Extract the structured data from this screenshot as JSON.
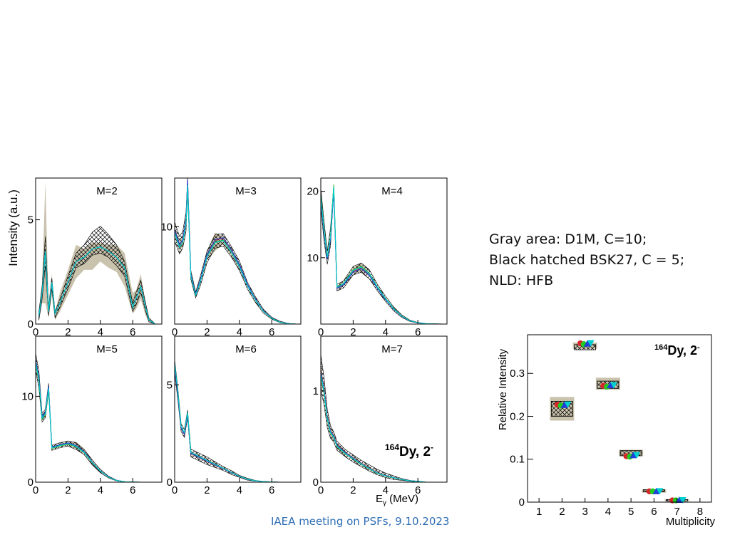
{
  "notes": {
    "line1": "Gray area: D1M, C=10;",
    "line2": "Black hatched BSK27, C = 5;",
    "line3": "NLD: HFB"
  },
  "footer": {
    "text": "IAEA meeting on PSFs, 9.10.2023"
  },
  "colors": {
    "band_gray": "#c9c2ad",
    "hatch": "#000000",
    "series": [
      "#d62728",
      "#22cc22",
      "#1f3fd6",
      "#00d0d0"
    ],
    "footer": "#2f6eb5"
  },
  "chart_data": [
    {
      "type": "line",
      "ylabel": "Intensity (a.u.)",
      "xlabel": "Eγ (MeV)",
      "annotation": "164Dy, 2-",
      "xlim": [
        0,
        7.8
      ],
      "xticks": [
        0,
        2,
        4,
        6
      ],
      "panels": [
        {
          "label": "M=2",
          "ylim": [
            0,
            7
          ],
          "yticks": [
            0,
            5
          ],
          "x": [
            0.2,
            0.4,
            0.6,
            0.8,
            1.0,
            1.2,
            1.5,
            2.0,
            2.5,
            3.0,
            3.5,
            4.0,
            4.5,
            5.0,
            5.5,
            6.0,
            6.2,
            6.5,
            6.8,
            7.0,
            7.4
          ],
          "values": [
            0.4,
            1.5,
            3.5,
            0.6,
            2.0,
            0.5,
            1.0,
            2.0,
            3.0,
            3.2,
            3.6,
            3.7,
            3.5,
            3.2,
            2.7,
            0.8,
            1.2,
            1.8,
            0.8,
            0.2,
            0
          ],
          "hatch_upper": [
            0.6,
            1.8,
            4.2,
            0.8,
            2.2,
            0.6,
            1.2,
            2.3,
            3.4,
            3.8,
            4.4,
            4.7,
            4.3,
            3.8,
            3.0,
            1.0,
            1.5,
            2.1,
            1.0,
            0.3,
            0
          ],
          "hatch_lower": [
            0.2,
            1.2,
            2.8,
            0.4,
            1.7,
            0.3,
            0.8,
            1.7,
            2.7,
            2.9,
            3.3,
            3.4,
            3.2,
            2.8,
            2.3,
            0.6,
            0.9,
            1.5,
            0.6,
            0.1,
            0
          ],
          "gray_upper": [
            0.6,
            2.0,
            6.8,
            1.0,
            2.4,
            0.6,
            1.5,
            2.6,
            3.8,
            3.6,
            3.9,
            3.9,
            3.8,
            3.8,
            3.4,
            1.5,
            1.6,
            2.4,
            1.0,
            0.3,
            0
          ],
          "gray_lower": [
            0.1,
            1.0,
            1.0,
            0.3,
            1.4,
            0.2,
            0.6,
            1.4,
            2.2,
            2.6,
            2.6,
            3.0,
            2.7,
            2.5,
            1.8,
            0.5,
            0.7,
            1.2,
            0.4,
            0.1,
            0
          ]
        },
        {
          "label": "M=3",
          "ylim": [
            0,
            15
          ],
          "yticks": [
            10
          ],
          "x": [
            0.0,
            0.3,
            0.5,
            0.7,
            0.8,
            1.0,
            1.3,
            1.6,
            2.0,
            2.5,
            3.0,
            3.5,
            4.0,
            4.5,
            5.0,
            5.5,
            6.0,
            6.5,
            7.0,
            7.5
          ],
          "values": [
            9.5,
            8.0,
            8.5,
            10.5,
            14.5,
            5.0,
            3.0,
            4.5,
            7.0,
            8.5,
            8.7,
            7.5,
            6.0,
            4.0,
            2.5,
            1.3,
            0.6,
            0.2,
            0.05,
            0
          ],
          "hatch_upper": [
            10.5,
            9.0,
            9.5,
            11.5,
            15.0,
            5.5,
            3.3,
            5.0,
            7.5,
            9.2,
            9.3,
            8.0,
            6.5,
            4.3,
            2.8,
            1.5,
            0.7,
            0.3,
            0.08,
            0
          ],
          "hatch_lower": [
            8.5,
            7.2,
            7.8,
            9.5,
            13.5,
            4.6,
            2.7,
            4.0,
            6.3,
            7.8,
            8.0,
            6.9,
            5.5,
            3.6,
            2.2,
            1.1,
            0.5,
            0.15,
            0.03,
            0
          ],
          "gray_upper": [
            10.0,
            8.6,
            9.2,
            11.0,
            14.8,
            5.3,
            3.2,
            4.8,
            7.5,
            9.4,
            9.0,
            7.8,
            6.3,
            4.2,
            2.7,
            1.4,
            0.7,
            0.25,
            0.06,
            0
          ],
          "gray_lower": [
            9.0,
            7.5,
            8.0,
            10.0,
            14.0,
            4.8,
            2.8,
            4.2,
            6.6,
            7.5,
            8.2,
            7.0,
            5.6,
            3.8,
            2.3,
            1.2,
            0.5,
            0.15,
            0.04,
            0
          ]
        },
        {
          "label": "M=4",
          "ylim": [
            0,
            22
          ],
          "yticks": [
            10,
            20
          ],
          "x": [
            0.0,
            0.2,
            0.4,
            0.6,
            0.8,
            1.0,
            1.4,
            2.0,
            2.5,
            3.0,
            3.5,
            4.0,
            4.5,
            5.0,
            5.5,
            6.0,
            6.5,
            7.0,
            7.5
          ],
          "values": [
            19.0,
            14.0,
            10.0,
            13.0,
            20.5,
            5.5,
            6.0,
            8.0,
            8.5,
            7.5,
            5.5,
            3.8,
            2.3,
            1.2,
            0.5,
            0.2,
            0.06,
            0.02,
            0
          ],
          "hatch_upper": [
            20.5,
            15.5,
            11.0,
            14.5,
            21.0,
            6.0,
            6.5,
            8.7,
            9.2,
            8.2,
            6.0,
            4.2,
            2.6,
            1.4,
            0.6,
            0.25,
            0.08,
            0.03,
            0
          ],
          "hatch_lower": [
            17.5,
            12.5,
            9.0,
            11.8,
            20.0,
            5.0,
            5.4,
            7.4,
            7.8,
            6.8,
            5.0,
            3.4,
            2.0,
            1.0,
            0.4,
            0.15,
            0.04,
            0.01,
            0
          ],
          "gray_upper": [
            20.0,
            15.0,
            10.5,
            14.0,
            20.8,
            5.8,
            6.2,
            8.5,
            9.2,
            7.8,
            5.7,
            4.0,
            2.4,
            1.3,
            0.55,
            0.22,
            0.07,
            0.02,
            0
          ],
          "gray_lower": [
            18.0,
            13.0,
            9.5,
            12.2,
            20.2,
            5.2,
            5.7,
            7.6,
            7.9,
            7.2,
            5.2,
            3.6,
            2.1,
            1.1,
            0.45,
            0.17,
            0.05,
            0.01,
            0
          ]
        },
        {
          "label": "M=5",
          "ylim": [
            0,
            17
          ],
          "yticks": [
            0,
            10
          ],
          "x": [
            0.0,
            0.2,
            0.4,
            0.6,
            0.8,
            1.0,
            1.5,
            2.0,
            2.5,
            3.0,
            3.5,
            4.0,
            4.5,
            5.0,
            5.5,
            6.0,
            6.5,
            7.0,
            7.5
          ],
          "values": [
            14.0,
            12.0,
            7.5,
            8.0,
            11.0,
            4.0,
            4.3,
            4.5,
            4.2,
            3.5,
            2.3,
            1.3,
            0.6,
            0.2,
            0.05,
            0.02,
            0,
            0,
            0
          ],
          "hatch_upper": [
            15.0,
            13.0,
            8.0,
            8.5,
            11.5,
            4.3,
            4.6,
            4.8,
            4.6,
            3.8,
            2.6,
            1.5,
            0.7,
            0.25,
            0.07,
            0.03,
            0,
            0,
            0
          ],
          "hatch_lower": [
            13.0,
            11.0,
            7.0,
            7.5,
            10.5,
            3.7,
            4.0,
            4.2,
            3.8,
            3.2,
            2.0,
            1.1,
            0.5,
            0.15,
            0.03,
            0.01,
            0,
            0,
            0
          ],
          "gray_upper": [
            14.8,
            12.5,
            7.8,
            8.3,
            11.3,
            4.2,
            4.5,
            4.7,
            4.7,
            3.9,
            2.5,
            1.4,
            0.65,
            0.22,
            0.06,
            0.02,
            0,
            0,
            0
          ],
          "gray_lower": [
            13.2,
            11.5,
            7.2,
            7.7,
            10.7,
            3.8,
            4.1,
            4.3,
            3.9,
            3.3,
            2.1,
            1.2,
            0.55,
            0.18,
            0.04,
            0.01,
            0,
            0,
            0
          ]
        },
        {
          "label": "M=6",
          "ylim": [
            0,
            7.5
          ],
          "yticks": [
            0,
            5
          ],
          "x": [
            0.0,
            0.2,
            0.4,
            0.6,
            0.8,
            1.0,
            1.5,
            2.0,
            2.5,
            3.0,
            3.5,
            4.0,
            4.5,
            5.0,
            5.5,
            6.0,
            6.5,
            7.0,
            7.5
          ],
          "values": [
            6.0,
            4.5,
            2.8,
            2.5,
            3.5,
            1.5,
            1.3,
            1.1,
            0.9,
            0.7,
            0.5,
            0.3,
            0.15,
            0.07,
            0.03,
            0.01,
            0,
            0,
            0
          ],
          "hatch_upper": [
            6.3,
            4.8,
            3.0,
            2.7,
            3.7,
            1.7,
            1.5,
            1.3,
            1.05,
            0.8,
            0.6,
            0.35,
            0.2,
            0.09,
            0.04,
            0.02,
            0,
            0,
            0
          ],
          "hatch_lower": [
            5.6,
            4.2,
            2.6,
            2.3,
            3.3,
            1.3,
            1.1,
            0.9,
            0.75,
            0.6,
            0.4,
            0.25,
            0.1,
            0.05,
            0.02,
            0.01,
            0,
            0,
            0
          ],
          "gray_upper": [
            6.2,
            4.7,
            2.9,
            2.6,
            3.6,
            1.6,
            1.4,
            1.2,
            1.0,
            0.75,
            0.55,
            0.32,
            0.17,
            0.08,
            0.03,
            0.01,
            0,
            0,
            0
          ],
          "gray_lower": [
            5.8,
            4.3,
            2.7,
            2.4,
            3.4,
            1.4,
            1.2,
            1.0,
            0.8,
            0.65,
            0.45,
            0.28,
            0.13,
            0.06,
            0.02,
            0.01,
            0,
            0,
            0
          ]
        },
        {
          "label": "M=7",
          "ylim": [
            0,
            1.6
          ],
          "yticks": [
            0,
            1
          ],
          "x": [
            0.0,
            0.2,
            0.4,
            0.6,
            0.8,
            1.0,
            1.5,
            2.0,
            2.5,
            3.0,
            3.5,
            4.0,
            4.5,
            5.0,
            5.5,
            6.0,
            6.5,
            7.0,
            7.5
          ],
          "values": [
            1.2,
            1.0,
            0.7,
            0.55,
            0.5,
            0.4,
            0.32,
            0.26,
            0.2,
            0.15,
            0.1,
            0.07,
            0.05,
            0.03,
            0.015,
            0.01,
            0,
            0,
            0
          ],
          "hatch_upper": [
            1.4,
            1.15,
            0.8,
            0.62,
            0.55,
            0.45,
            0.36,
            0.3,
            0.24,
            0.19,
            0.14,
            0.1,
            0.07,
            0.04,
            0.02,
            0.01,
            0,
            0,
            0
          ],
          "hatch_lower": [
            1.0,
            0.85,
            0.6,
            0.48,
            0.44,
            0.35,
            0.28,
            0.22,
            0.17,
            0.12,
            0.08,
            0.05,
            0.03,
            0.02,
            0.01,
            0,
            0,
            0,
            0
          ],
          "gray_upper": [
            1.3,
            1.05,
            0.75,
            0.6,
            0.53,
            0.43,
            0.34,
            0.28,
            0.22,
            0.17,
            0.12,
            0.08,
            0.06,
            0.035,
            0.018,
            0.01,
            0,
            0,
            0
          ],
          "gray_lower": [
            1.1,
            0.95,
            0.65,
            0.5,
            0.47,
            0.37,
            0.3,
            0.24,
            0.18,
            0.13,
            0.09,
            0.06,
            0.04,
            0.025,
            0.012,
            0.005,
            0,
            0,
            0
          ]
        }
      ]
    },
    {
      "type": "scatter",
      "xlabel": "Multiplicity",
      "ylabel": "Relative Intensity",
      "annotation": "164Dy, 2-",
      "xlim": [
        0.5,
        8.5
      ],
      "ylim": [
        0,
        0.39
      ],
      "xticks": [
        1,
        2,
        3,
        4,
        5,
        6,
        7,
        8
      ],
      "yticks": [
        0,
        0.1,
        0.2,
        0.3
      ],
      "gray_band": [
        {
          "x": 2,
          "lower": 0.19,
          "upper": 0.245
        },
        {
          "x": 3,
          "lower": 0.357,
          "upper": 0.372
        },
        {
          "x": 4,
          "lower": 0.262,
          "upper": 0.29
        },
        {
          "x": 5,
          "lower": 0.107,
          "upper": 0.122
        },
        {
          "x": 6,
          "lower": 0.022,
          "upper": 0.03
        },
        {
          "x": 7,
          "lower": 0.002,
          "upper": 0.007
        }
      ],
      "hatch_band": [
        {
          "x": 2,
          "lower": 0.2,
          "upper": 0.235
        },
        {
          "x": 3,
          "lower": 0.355,
          "upper": 0.367
        },
        {
          "x": 4,
          "lower": 0.265,
          "upper": 0.282
        },
        {
          "x": 5,
          "lower": 0.108,
          "upper": 0.12
        },
        {
          "x": 6,
          "lower": 0.024,
          "upper": 0.029
        },
        {
          "x": 7,
          "lower": 0.003,
          "upper": 0.006
        }
      ],
      "series": [
        {
          "marker": "circle",
          "x": [
            1.8,
            2.8,
            3.8,
            4.8,
            5.8,
            6.8
          ],
          "values": [
            0.227,
            0.37,
            0.271,
            0.107,
            0.025,
            0.004
          ]
        },
        {
          "marker": "circle",
          "x": [
            1.95,
            2.95,
            3.95,
            4.95,
            5.95,
            6.95
          ],
          "values": [
            0.225,
            0.368,
            0.269,
            0.106,
            0.025,
            0.004
          ]
        },
        {
          "marker": "triangle-up",
          "x": [
            2.1,
            3.1,
            4.1,
            5.1,
            6.1,
            7.1
          ],
          "values": [
            0.226,
            0.369,
            0.272,
            0.109,
            0.025,
            0.005
          ]
        },
        {
          "marker": "triangle-down",
          "x": [
            2.25,
            3.25,
            4.25,
            5.25,
            6.25,
            7.25
          ],
          "values": [
            0.228,
            0.371,
            0.273,
            0.11,
            0.026,
            0.005
          ]
        }
      ]
    }
  ]
}
